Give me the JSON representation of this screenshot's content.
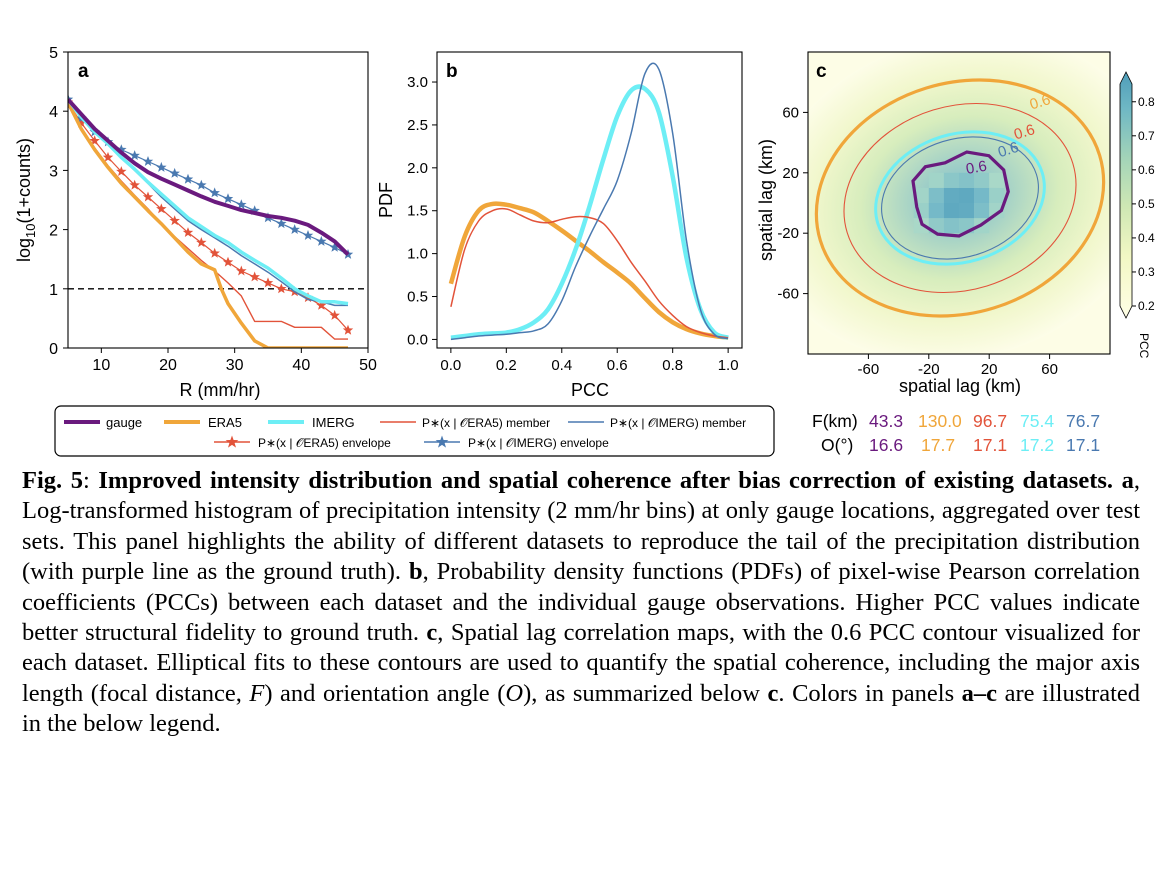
{
  "colors": {
    "gauge": "#6a1a7e",
    "era5": "#f0a63a",
    "imerg": "#6deef5",
    "era5_member": "#e2533a",
    "imerg_member": "#4a79b0"
  },
  "panels": {
    "a": {
      "letter": "a",
      "ylabel_main": "log",
      "ylabel_sub": "10",
      "ylabel_rest": "(1+counts)",
      "xlabel": "R (mm/hr)"
    },
    "b": {
      "letter": "b",
      "ylabel": "PDF",
      "xlabel": "PCC"
    },
    "c": {
      "letter": "c",
      "xlabel": "spatial lag (km)",
      "ylabel": "spatial lag (km)",
      "colorbar_label": "PCC",
      "contour_labels": [
        "0.6",
        "0.6",
        "0.6",
        "0.6"
      ],
      "colorbar_ticks": [
        "0.8",
        "0.7",
        "0.6",
        "0.5",
        "0.4",
        "0.3",
        "0.2"
      ]
    }
  },
  "legend": {
    "gauge": "gauge",
    "era5": "ERA5",
    "imerg": "IMERG",
    "era5_member": "P∗(x | 𝒪ERA5) member",
    "imerg_member": "P∗(x | 𝒪IMERG) member",
    "era5_envelope": "P∗(x | 𝒪ERA5) envelope",
    "imerg_envelope": "P∗(x | 𝒪IMERG) envelope"
  },
  "summary": {
    "f_label": "F(km)",
    "o_label": "O(°)",
    "f_values": [
      "43.3",
      "130.0",
      "96.7",
      "75.4",
      "76.7"
    ],
    "o_values": [
      "16.6",
      "17.7",
      "17.1",
      "17.2",
      "17.1"
    ]
  },
  "caption": {
    "figlabel": "Fig. 5",
    "colon": ":",
    "title": "Improved intensity distribution and spatial coherence after bias correction of existing datasets.",
    "a_label": "a",
    "a_text": ", Log-transformed histogram of precipitation intensity (2 mm/hr bins) at only gauge locations, aggregated over test sets. This panel highlights the ability of different datasets to reproduce the tail of the precipitation distribution (with purple line as the ground truth).",
    "b_label": "b",
    "b_text": ", Probability density functions (PDFs) of pixel-wise Pearson correlation coefficients (PCCs) between each dataset and the individual gauge observations. Higher PCC values indicate better structural fidelity to ground truth.",
    "c_label": "c",
    "c_text1": ", Spatial lag correlation maps, with the 0.6 PCC contour visualized for each dataset. Elliptical fits to these contours are used to quantify the spatial coherence, including the major axis length (focal distance, ",
    "c_F": "F",
    "c_text2": ") and orientation angle (",
    "c_O": "O",
    "c_text3": "), as summarized below ",
    "c_c": "c",
    "c_text4": ". Colors in panels ",
    "c_range": "a–c",
    "c_text5": " are illustrated in the below legend."
  },
  "chart_data": [
    {
      "type": "line",
      "panel": "a",
      "xlabel": "R (mm/hr)",
      "ylabel": "log10(1+counts)",
      "xlim": [
        5,
        50
      ],
      "ylim": [
        0,
        5
      ],
      "xticks": [
        10,
        20,
        30,
        40,
        50
      ],
      "yticks": [
        0,
        1,
        2,
        3,
        4,
        5
      ],
      "reference_line": 1,
      "series": [
        {
          "name": "gauge",
          "x": [
            5,
            7,
            9,
            11,
            13,
            15,
            17,
            19,
            21,
            23,
            25,
            27,
            29,
            31,
            33,
            35,
            37,
            39,
            41,
            43,
            45,
            47
          ],
          "y": [
            4.2,
            3.95,
            3.7,
            3.5,
            3.3,
            3.12,
            2.97,
            2.86,
            2.76,
            2.66,
            2.56,
            2.47,
            2.4,
            2.33,
            2.28,
            2.23,
            2.2,
            2.15,
            2.08,
            1.95,
            1.8,
            1.58
          ]
        },
        {
          "name": "ERA5",
          "x": [
            5,
            7,
            9,
            11,
            13,
            15,
            17,
            19,
            21,
            23,
            25,
            27,
            28,
            29,
            31,
            33,
            35,
            37,
            41,
            43,
            45,
            47
          ],
          "y": [
            4.15,
            3.7,
            3.35,
            3.05,
            2.78,
            2.55,
            2.32,
            2.1,
            1.86,
            1.62,
            1.42,
            1.32,
            1.0,
            0.75,
            0.42,
            0.12,
            0.0,
            0.0,
            0.0,
            0.0,
            0.0,
            0.0
          ]
        },
        {
          "name": "IMERG",
          "x": [
            5,
            7,
            9,
            11,
            13,
            15,
            17,
            19,
            21,
            23,
            25,
            27,
            29,
            31,
            33,
            35,
            37,
            39,
            41,
            43,
            45,
            47
          ],
          "y": [
            4.2,
            3.9,
            3.65,
            3.45,
            3.22,
            3.02,
            2.8,
            2.6,
            2.4,
            2.2,
            2.05,
            1.9,
            1.78,
            1.62,
            1.48,
            1.35,
            1.18,
            1.0,
            0.88,
            0.78,
            0.78,
            0.75
          ]
        },
        {
          "name": "P∗(x | 𝒪ERA5) member",
          "x": [
            5,
            7,
            9,
            11,
            13,
            15,
            17,
            19,
            21,
            23,
            25,
            27,
            29,
            31,
            33,
            35,
            37,
            39,
            41,
            43,
            45,
            47
          ],
          "y": [
            4.1,
            3.72,
            3.38,
            3.08,
            2.82,
            2.58,
            2.35,
            2.1,
            1.88,
            1.68,
            1.48,
            1.3,
            1.1,
            0.88,
            0.45,
            0.45,
            0.45,
            0.35,
            0.35,
            0.35,
            0.15,
            0.15
          ]
        },
        {
          "name": "P∗(x | 𝒪IMERG) member",
          "x": [
            5,
            7,
            9,
            11,
            13,
            15,
            17,
            19,
            21,
            23,
            25,
            27,
            29,
            31,
            33,
            35,
            37,
            39,
            41,
            43,
            45,
            47
          ],
          "y": [
            4.2,
            3.92,
            3.68,
            3.45,
            3.22,
            3.0,
            2.78,
            2.55,
            2.35,
            2.15,
            2.0,
            1.86,
            1.72,
            1.56,
            1.42,
            1.28,
            1.12,
            0.95,
            0.82,
            0.78,
            0.72,
            0.72
          ]
        },
        {
          "name": "P∗(x | 𝒪ERA5) envelope",
          "x": [
            5,
            7,
            9,
            11,
            13,
            15,
            17,
            19,
            21,
            23,
            25,
            27,
            29,
            31,
            33,
            35,
            37,
            39,
            41,
            43,
            45,
            47
          ],
          "y": [
            4.15,
            3.8,
            3.5,
            3.22,
            2.98,
            2.75,
            2.55,
            2.35,
            2.15,
            1.95,
            1.78,
            1.6,
            1.45,
            1.3,
            1.2,
            1.1,
            1.0,
            0.95,
            0.85,
            0.72,
            0.55,
            0.3
          ]
        },
        {
          "name": "P∗(x | 𝒪IMERG) envelope",
          "x": [
            5,
            7,
            9,
            11,
            13,
            15,
            17,
            19,
            21,
            23,
            25,
            27,
            29,
            31,
            33,
            35,
            37,
            39,
            41,
            43,
            45,
            47
          ],
          "y": [
            4.2,
            3.88,
            3.65,
            3.48,
            3.35,
            3.25,
            3.15,
            3.05,
            2.95,
            2.85,
            2.75,
            2.62,
            2.52,
            2.42,
            2.32,
            2.2,
            2.1,
            2.0,
            1.9,
            1.8,
            1.7,
            1.58
          ]
        }
      ]
    },
    {
      "type": "line",
      "panel": "b",
      "xlabel": "PCC",
      "ylabel": "PDF",
      "xlim": [
        -0.05,
        1.05
      ],
      "ylim": [
        -0.1,
        3.35
      ],
      "xticks": [
        "0.0",
        "0.2",
        "0.4",
        "0.6",
        "0.8",
        "1.0"
      ],
      "yticks": [
        "0.0",
        "0.5",
        "1.0",
        "1.5",
        "2.0",
        "2.5",
        "3.0"
      ],
      "series": [
        {
          "name": "ERA5",
          "x": [
            0.0,
            0.05,
            0.1,
            0.15,
            0.2,
            0.25,
            0.3,
            0.35,
            0.4,
            0.45,
            0.5,
            0.55,
            0.6,
            0.65,
            0.7,
            0.75,
            0.8,
            0.85,
            0.9,
            0.95,
            1.0
          ],
          "y": [
            0.65,
            1.2,
            1.5,
            1.58,
            1.57,
            1.53,
            1.48,
            1.38,
            1.27,
            1.15,
            1.03,
            0.9,
            0.78,
            0.65,
            0.48,
            0.32,
            0.2,
            0.12,
            0.07,
            0.04,
            0.02
          ]
        },
        {
          "name": "IMERG",
          "x": [
            0.0,
            0.05,
            0.1,
            0.15,
            0.2,
            0.25,
            0.3,
            0.35,
            0.4,
            0.45,
            0.5,
            0.55,
            0.6,
            0.65,
            0.7,
            0.75,
            0.8,
            0.85,
            0.9,
            0.95,
            1.0
          ],
          "y": [
            0.02,
            0.04,
            0.06,
            0.07,
            0.08,
            0.12,
            0.2,
            0.35,
            0.65,
            1.05,
            1.55,
            2.1,
            2.6,
            2.9,
            2.92,
            2.65,
            1.9,
            0.95,
            0.35,
            0.08,
            0.02
          ]
        },
        {
          "name": "P∗(x | 𝒪ERA5) member",
          "x": [
            0.0,
            0.05,
            0.1,
            0.15,
            0.2,
            0.25,
            0.3,
            0.35,
            0.4,
            0.45,
            0.5,
            0.55,
            0.6,
            0.65,
            0.7,
            0.75,
            0.8,
            0.85,
            0.9,
            0.95,
            1.0
          ],
          "y": [
            0.38,
            1.05,
            1.38,
            1.5,
            1.52,
            1.45,
            1.38,
            1.36,
            1.4,
            1.43,
            1.42,
            1.35,
            1.15,
            0.9,
            0.68,
            0.45,
            0.28,
            0.15,
            0.08,
            0.04,
            0.02
          ]
        },
        {
          "name": "P∗(x | 𝒪IMERG) member",
          "x": [
            0.0,
            0.05,
            0.1,
            0.15,
            0.2,
            0.25,
            0.3,
            0.35,
            0.4,
            0.45,
            0.5,
            0.55,
            0.6,
            0.65,
            0.7,
            0.75,
            0.8,
            0.85,
            0.9,
            0.95,
            1.0
          ],
          "y": [
            0.0,
            0.02,
            0.04,
            0.05,
            0.06,
            0.08,
            0.1,
            0.18,
            0.45,
            0.85,
            1.2,
            1.52,
            1.85,
            2.4,
            3.1,
            3.15,
            2.4,
            1.15,
            0.35,
            0.06,
            0.01
          ]
        }
      ]
    },
    {
      "type": "heatmap",
      "panel": "c",
      "xlabel": "spatial lag (km)",
      "ylabel": "spatial lag (km)",
      "xlim": [
        -100,
        100
      ],
      "ylim": [
        -100,
        100
      ],
      "xticks": [
        -60,
        -20,
        20,
        60
      ],
      "yticks": [
        60,
        20,
        -20,
        -60
      ],
      "colorbar": {
        "min": 0.2,
        "max": 0.85,
        "ticks": [
          0.2,
          0.3,
          0.4,
          0.5,
          0.6,
          0.7,
          0.8
        ],
        "label": "PCC"
      },
      "field": {
        "peak": 0.85,
        "orientation_deg": 17,
        "semi_major_km": 33,
        "semi_minor_km": 24
      },
      "contours_0_6": [
        {
          "name": "gauge",
          "F_km": 43.3,
          "O_deg": 16.6
        },
        {
          "name": "ERA5",
          "F_km": 130.0,
          "O_deg": 17.7
        },
        {
          "name": "P∗(x | 𝒪ERA5) member",
          "F_km": 96.7,
          "O_deg": 17.1
        },
        {
          "name": "IMERG",
          "F_km": 75.4,
          "O_deg": 17.2
        },
        {
          "name": "P∗(x | 𝒪IMERG) member",
          "F_km": 76.7,
          "O_deg": 17.1
        }
      ]
    }
  ]
}
